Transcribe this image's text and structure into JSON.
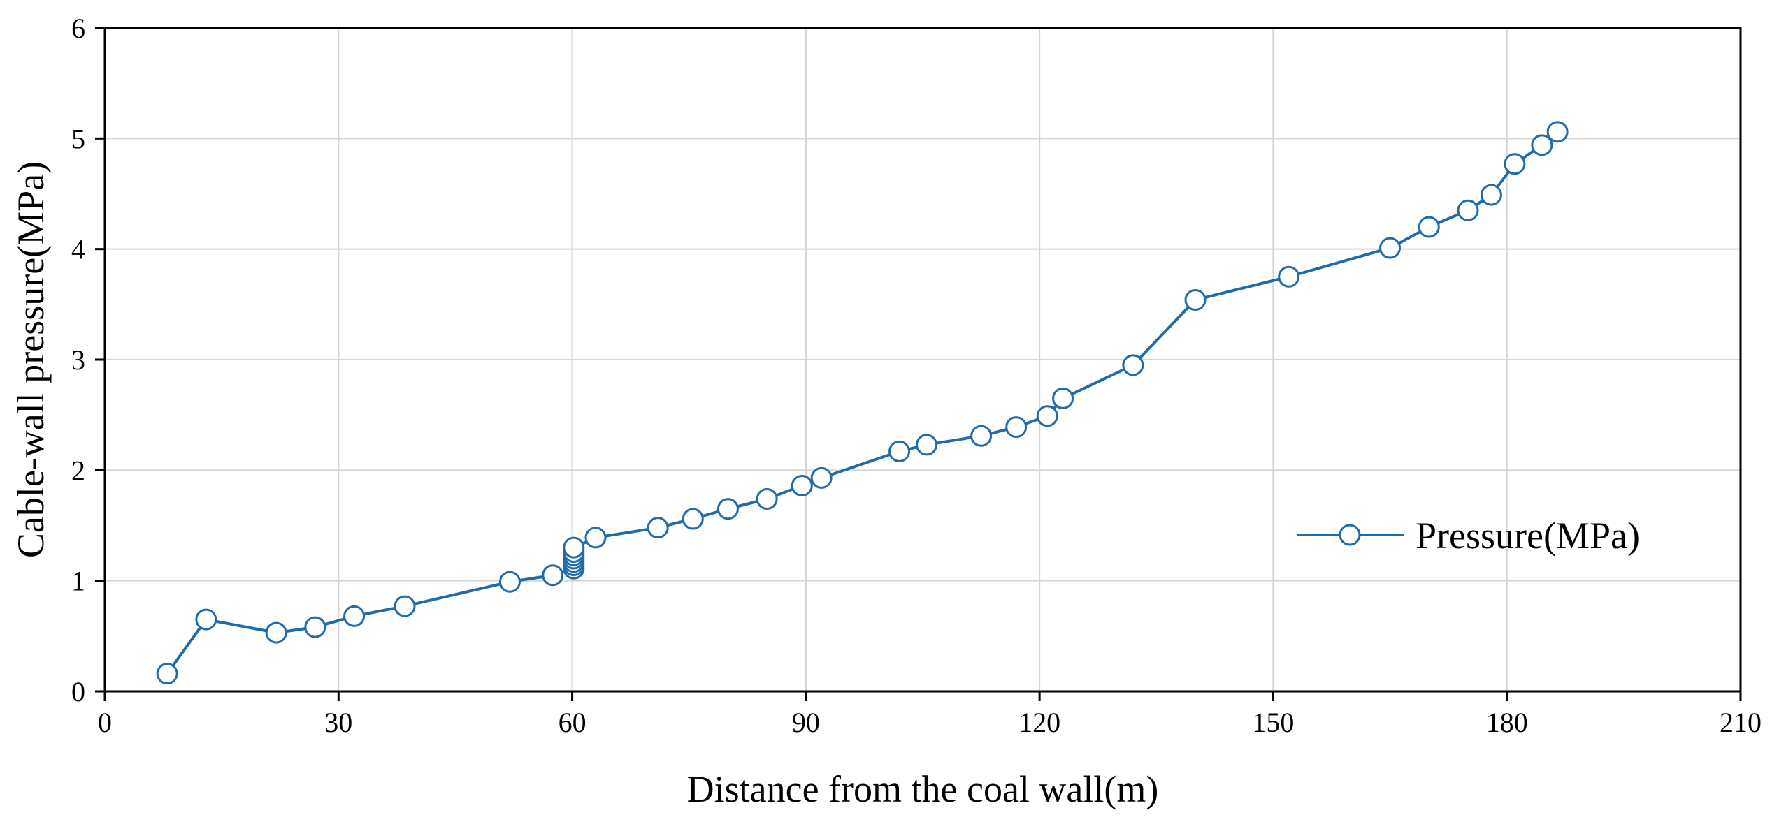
{
  "colors": {
    "series": "#1f6cad",
    "grid": "#d4d4d4",
    "axis": "#000000",
    "background": "#ffffff"
  },
  "chart_data": {
    "type": "line",
    "title": "",
    "xlabel": "Distance from the coal wall(m)",
    "ylabel": "Cable-wall pressure(MPa)",
    "xlim": [
      0,
      210
    ],
    "ylim": [
      0,
      6
    ],
    "xticks": [
      0,
      30,
      60,
      90,
      120,
      150,
      180,
      210
    ],
    "yticks": [
      0,
      1,
      2,
      3,
      4,
      5,
      6
    ],
    "grid": true,
    "legend_position": "right",
    "series": [
      {
        "name": "Pressure(MPa)",
        "marker": "open-circle",
        "x": [
          8,
          13,
          22,
          27,
          32,
          38.5,
          52,
          57.5,
          60.2,
          60.2,
          60.2,
          60.2,
          60.2,
          60.2,
          60.2,
          63,
          71,
          75.5,
          80,
          85,
          89.5,
          92,
          102,
          105.5,
          112.5,
          117,
          121,
          123,
          132,
          140,
          152,
          165,
          170,
          175,
          178,
          181,
          184.5,
          186.5
        ],
        "y": [
          0.16,
          0.65,
          0.53,
          0.58,
          0.68,
          0.77,
          0.99,
          1.05,
          1.11,
          1.14,
          1.17,
          1.2,
          1.23,
          1.26,
          1.3,
          1.39,
          1.48,
          1.56,
          1.65,
          1.74,
          1.86,
          1.93,
          2.17,
          2.23,
          2.31,
          2.39,
          2.49,
          2.65,
          2.95,
          3.54,
          3.75,
          4.01,
          4.2,
          4.35,
          4.49,
          4.77,
          4.94,
          5.06
        ]
      }
    ]
  }
}
